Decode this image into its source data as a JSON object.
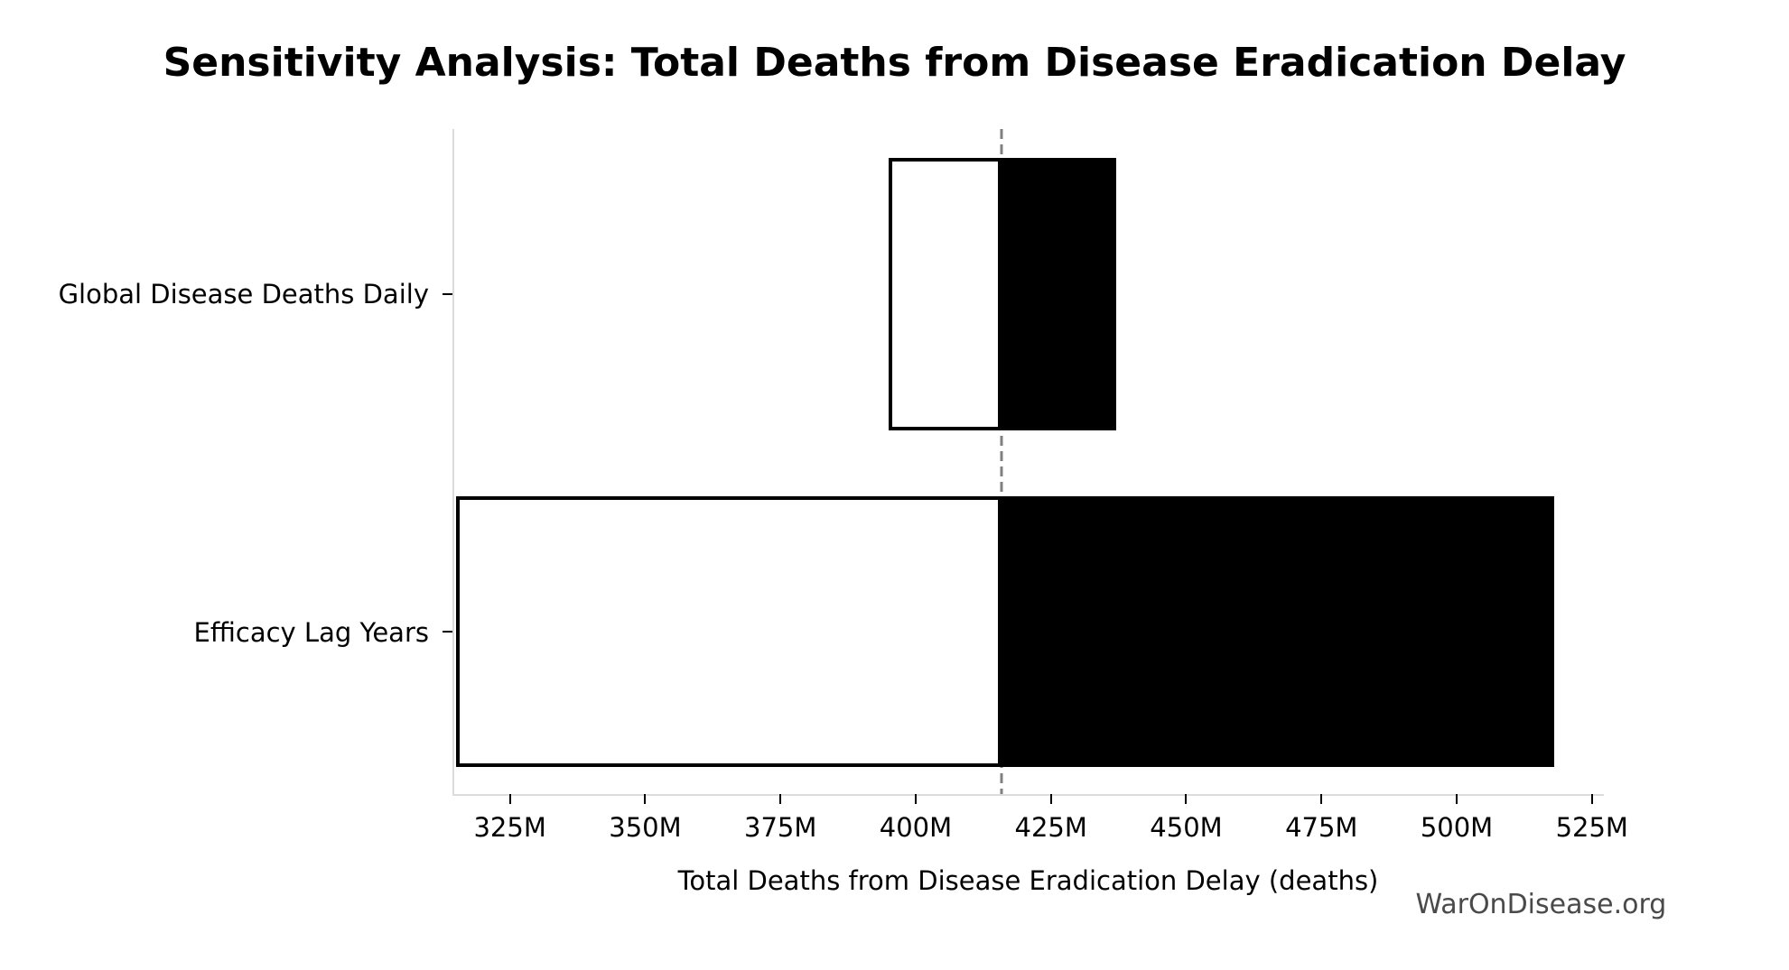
{
  "title": "Sensitivity Analysis: Total Deaths from Disease Eradication Delay",
  "watermark": "WarOnDisease.org",
  "chart_data": {
    "type": "bar",
    "subtype": "tornado-sensitivity",
    "orientation": "horizontal",
    "title": "Sensitivity Analysis: Total Deaths from Disease Eradication Delay",
    "xlabel": "Total Deaths from Disease Eradication Delay (deaths)",
    "ylabel": "",
    "unit": "millions of deaths",
    "categories": [
      "Global Disease Deaths Daily",
      "Efficacy Lag Years"
    ],
    "baseline_x": 415.8,
    "series": [
      {
        "name": "Global Disease Deaths Daily",
        "low": 395,
        "high": 437
      },
      {
        "name": "Efficacy Lag Years",
        "low": 315,
        "high": 518
      }
    ],
    "x_ticks": [
      {
        "label": "325M",
        "value": 325
      },
      {
        "label": "350M",
        "value": 350
      },
      {
        "label": "375M",
        "value": 375
      },
      {
        "label": "400M",
        "value": 400
      },
      {
        "label": "425M",
        "value": 425
      },
      {
        "label": "450M",
        "value": 450
      },
      {
        "label": "475M",
        "value": 475
      },
      {
        "label": "500M",
        "value": 500
      },
      {
        "label": "525M",
        "value": 525
      }
    ],
    "xlim": [
      314.7,
      527.2
    ],
    "grid": false,
    "legend": "none",
    "colors": {
      "low_fill": "#ffffff",
      "high_fill": "#000000",
      "bar_edge": "#000000",
      "baseline_line": "#808080",
      "spine": "#dcdcdc",
      "text": "#000000",
      "watermark_text": "#4a4a4a"
    }
  }
}
